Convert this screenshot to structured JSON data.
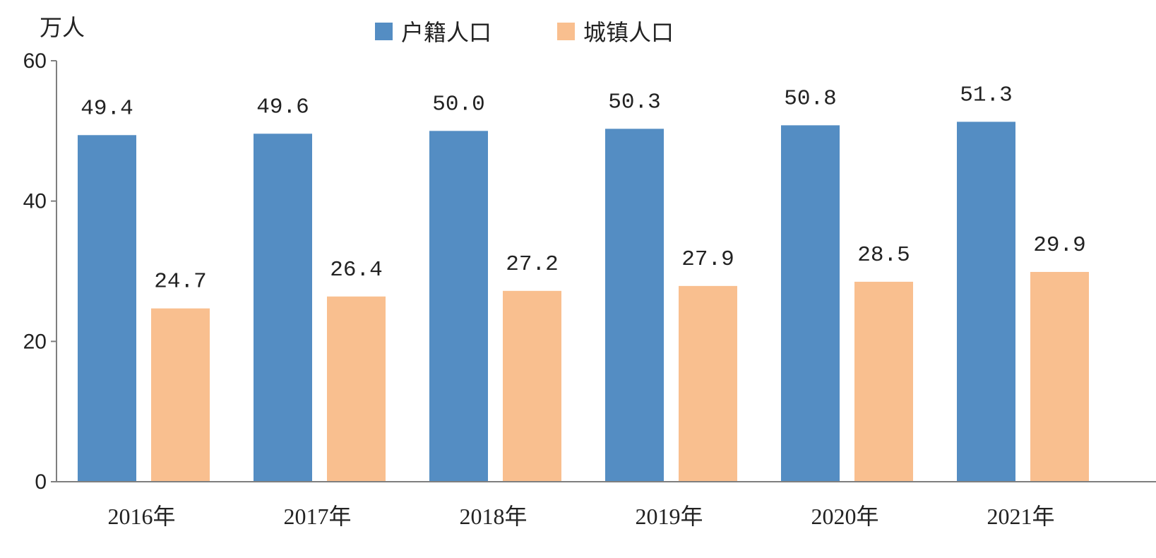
{
  "chart_data": {
    "type": "bar",
    "unit_label": "万人",
    "categories": [
      "2016年",
      "2017年",
      "2018年",
      "2019年",
      "2020年",
      "2021年"
    ],
    "series": [
      {
        "name": "户籍人口",
        "color": "#548dc3",
        "values": [
          49.4,
          49.6,
          50.0,
          50.3,
          50.8,
          51.3
        ],
        "labels": [
          "49.4",
          "49.6",
          "50.0",
          "50.3",
          "50.8",
          "51.3"
        ]
      },
      {
        "name": "城镇人口",
        "color": "#f9bf8f",
        "values": [
          24.7,
          26.4,
          27.2,
          27.9,
          28.5,
          29.9
        ],
        "labels": [
          "24.7",
          "26.4",
          "27.2",
          "27.9",
          "28.5",
          "29.9"
        ]
      }
    ],
    "ylim": [
      0,
      60
    ],
    "yticks": [
      "0",
      "20",
      "40",
      "60"
    ],
    "grid": false,
    "legend_position": "top-center"
  }
}
